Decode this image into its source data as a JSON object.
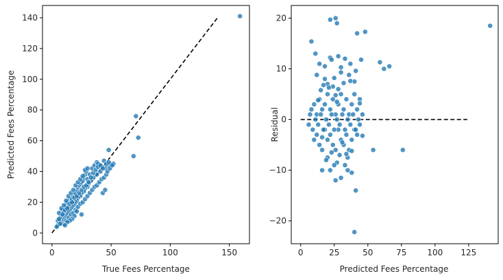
{
  "chart_data": [
    {
      "type": "scatter",
      "xlabel": "True Fees Percentage",
      "ylabel": "Predicted Fees Percentage",
      "xlim": [
        -8,
        167
      ],
      "ylim": [
        -7,
        148
      ],
      "xticks": [
        0,
        50,
        100,
        150
      ],
      "yticks": [
        0,
        20,
        40,
        60,
        80,
        100,
        120,
        140
      ],
      "reference_line": {
        "style": "dashed",
        "color": "#000000",
        "from": [
          0,
          0
        ],
        "to": [
          140,
          140
        ]
      },
      "color": "#1f77b4",
      "points": [
        [
          159,
          141
        ],
        [
          71,
          76
        ],
        [
          73,
          62
        ],
        [
          69,
          50
        ],
        [
          48,
          54
        ],
        [
          50,
          45
        ],
        [
          52,
          45
        ],
        [
          47,
          44
        ],
        [
          45,
          42
        ],
        [
          43,
          26
        ],
        [
          45,
          28
        ],
        [
          41,
          40
        ],
        [
          38,
          38
        ],
        [
          35,
          36
        ],
        [
          33,
          34
        ],
        [
          31,
          32
        ],
        [
          30,
          30
        ],
        [
          28,
          29
        ],
        [
          27,
          27
        ],
        [
          25,
          26
        ],
        [
          24,
          24
        ],
        [
          22,
          23
        ],
        [
          21,
          21
        ],
        [
          20,
          20
        ],
        [
          19,
          19
        ],
        [
          18,
          18
        ],
        [
          17,
          17
        ],
        [
          16,
          16
        ],
        [
          15,
          15
        ],
        [
          14,
          14
        ],
        [
          13,
          13
        ],
        [
          12,
          12
        ],
        [
          11,
          11
        ],
        [
          10,
          10
        ],
        [
          9,
          9
        ],
        [
          8,
          8
        ],
        [
          7,
          7
        ],
        [
          6,
          6
        ],
        [
          5,
          5
        ],
        [
          4,
          4
        ],
        [
          8,
          12
        ],
        [
          9,
          15
        ],
        [
          10,
          14
        ],
        [
          12,
          18
        ],
        [
          13,
          20
        ],
        [
          14,
          17
        ],
        [
          15,
          22
        ],
        [
          16,
          20
        ],
        [
          17,
          22
        ],
        [
          18,
          24
        ],
        [
          19,
          25
        ],
        [
          20,
          26
        ],
        [
          21,
          28
        ],
        [
          22,
          30
        ],
        [
          23,
          31
        ],
        [
          24,
          32
        ],
        [
          25,
          33
        ],
        [
          26,
          34
        ],
        [
          27,
          36
        ],
        [
          28,
          38
        ],
        [
          29,
          40
        ],
        [
          30,
          35
        ],
        [
          32,
          38
        ],
        [
          34,
          42
        ],
        [
          36,
          44
        ],
        [
          38,
          46
        ],
        [
          40,
          44
        ],
        [
          42,
          43
        ],
        [
          44,
          47
        ],
        [
          46,
          45
        ],
        [
          48,
          46
        ],
        [
          39,
          45
        ],
        [
          10,
          6
        ],
        [
          12,
          8
        ],
        [
          14,
          10
        ],
        [
          16,
          12
        ],
        [
          18,
          13
        ],
        [
          20,
          15
        ],
        [
          22,
          17
        ],
        [
          24,
          19
        ],
        [
          26,
          20
        ],
        [
          28,
          22
        ],
        [
          30,
          24
        ],
        [
          32,
          26
        ],
        [
          34,
          28
        ],
        [
          36,
          30
        ],
        [
          38,
          31
        ],
        [
          40,
          33
        ],
        [
          42,
          35
        ],
        [
          44,
          36
        ],
        [
          46,
          38
        ],
        [
          25,
          12
        ],
        [
          21,
          14
        ],
        [
          19,
          11
        ],
        [
          17,
          9
        ],
        [
          15,
          8
        ],
        [
          13,
          7
        ],
        [
          11,
          5
        ],
        [
          7,
          10
        ],
        [
          6,
          13
        ],
        [
          8,
          16
        ],
        [
          10,
          18
        ],
        [
          12,
          21
        ],
        [
          14,
          24
        ],
        [
          16,
          26
        ],
        [
          18,
          28
        ],
        [
          20,
          31
        ],
        [
          22,
          33
        ],
        [
          24,
          35
        ],
        [
          26,
          37
        ],
        [
          28,
          41
        ],
        [
          30,
          42
        ],
        [
          5,
          8
        ],
        [
          6,
          9
        ],
        [
          7,
          6
        ],
        [
          9,
          12
        ],
        [
          11,
          15
        ],
        [
          13,
          16
        ],
        [
          15,
          19
        ],
        [
          17,
          20
        ],
        [
          19,
          23
        ],
        [
          21,
          24
        ],
        [
          23,
          26
        ],
        [
          25,
          28
        ],
        [
          27,
          30
        ],
        [
          29,
          31
        ],
        [
          31,
          33
        ],
        [
          33,
          36
        ],
        [
          35,
          39
        ],
        [
          37,
          41
        ],
        [
          39,
          43
        ],
        [
          41,
          44
        ],
        [
          43,
          42
        ],
        [
          47,
          40
        ],
        [
          49,
          42
        ],
        [
          51,
          44
        ]
      ]
    },
    {
      "type": "scatter",
      "xlabel": "Predicted Fees Percentage",
      "ylabel": "Residual",
      "xlim": [
        -7,
        147
      ],
      "ylim": [
        -24.5,
        22.5
      ],
      "xticks": [
        0,
        25,
        50,
        75,
        100,
        125
      ],
      "yticks": [
        -20,
        -10,
        0,
        10,
        20
      ],
      "reference_line": {
        "style": "dashed",
        "color": "#000000",
        "from": [
          0,
          0
        ],
        "to": [
          124,
          0
        ]
      },
      "color": "#1f77b4",
      "points": [
        [
          141,
          18.5
        ],
        [
          76,
          -6
        ],
        [
          62,
          10
        ],
        [
          66,
          10.5
        ],
        [
          59,
          11.3
        ],
        [
          54,
          -6
        ],
        [
          45,
          11.8
        ],
        [
          48,
          17.3
        ],
        [
          42,
          17
        ],
        [
          41,
          -14
        ],
        [
          40,
          -22.2
        ],
        [
          26,
          20
        ],
        [
          22,
          19.7
        ],
        [
          27,
          19
        ],
        [
          8,
          15.4
        ],
        [
          11,
          13
        ],
        [
          22,
          12.2
        ],
        [
          23,
          11.8
        ],
        [
          28,
          12.5
        ],
        [
          33,
          12
        ],
        [
          18,
          10.5
        ],
        [
          14,
          11
        ],
        [
          30,
          10.3
        ],
        [
          37,
          11
        ],
        [
          30,
          9.3
        ],
        [
          36,
          8.8
        ],
        [
          12,
          8.8
        ],
        [
          18,
          8
        ],
        [
          25,
          8.2
        ],
        [
          40,
          7.5
        ],
        [
          41,
          9.6
        ],
        [
          22,
          -10
        ],
        [
          16,
          -10
        ],
        [
          26,
          -12
        ],
        [
          30,
          -11.5
        ],
        [
          35,
          -10
        ],
        [
          38,
          -10.5
        ],
        [
          33,
          -9
        ],
        [
          27,
          -8.5
        ],
        [
          20,
          -7.5
        ],
        [
          10,
          -4
        ],
        [
          12,
          -3
        ],
        [
          14,
          -5
        ],
        [
          16,
          -6
        ],
        [
          18,
          -2
        ],
        [
          20,
          -4
        ],
        [
          22,
          -3
        ],
        [
          24,
          -5
        ],
        [
          26,
          -6
        ],
        [
          28,
          -2
        ],
        [
          30,
          -4
        ],
        [
          32,
          -5
        ],
        [
          34,
          -3
        ],
        [
          36,
          -6
        ],
        [
          38,
          -4
        ],
        [
          40,
          -2
        ],
        [
          42,
          -3
        ],
        [
          44,
          -1
        ],
        [
          8,
          2
        ],
        [
          10,
          3
        ],
        [
          12,
          1
        ],
        [
          14,
          4
        ],
        [
          16,
          2
        ],
        [
          18,
          3
        ],
        [
          20,
          5
        ],
        [
          22,
          2
        ],
        [
          24,
          4
        ],
        [
          26,
          1
        ],
        [
          28,
          3
        ],
        [
          30,
          5
        ],
        [
          32,
          2
        ],
        [
          34,
          4
        ],
        [
          36,
          1
        ],
        [
          38,
          3
        ],
        [
          40,
          5
        ],
        [
          42,
          2
        ],
        [
          44,
          4
        ],
        [
          46,
          1
        ],
        [
          6,
          -1
        ],
        [
          7,
          1
        ],
        [
          9,
          -2
        ],
        [
          11,
          0
        ],
        [
          13,
          -1
        ],
        [
          15,
          1
        ],
        [
          17,
          -2
        ],
        [
          19,
          0
        ],
        [
          21,
          -1
        ],
        [
          23,
          1
        ],
        [
          25,
          -2
        ],
        [
          27,
          0
        ],
        [
          29,
          -1
        ],
        [
          31,
          1
        ],
        [
          33,
          -2
        ],
        [
          35,
          0
        ],
        [
          37,
          -1
        ],
        [
          39,
          1
        ],
        [
          41,
          -2
        ],
        [
          43,
          0
        ],
        [
          20,
          7
        ],
        [
          24,
          6.5
        ],
        [
          28,
          6
        ],
        [
          32,
          7.2
        ],
        [
          15,
          5.8
        ],
        [
          19,
          -8
        ],
        [
          25,
          -9
        ],
        [
          29,
          -7
        ],
        [
          35,
          -7.5
        ],
        [
          21,
          6.3
        ],
        [
          16,
          -3.5
        ],
        [
          23,
          -6.5
        ],
        [
          27,
          3.5
        ],
        [
          31,
          -4.5
        ],
        [
          13,
          3.8
        ],
        [
          17,
          6.8
        ],
        [
          26,
          4.8
        ],
        [
          34,
          -6.8
        ],
        [
          38,
          -6.2
        ],
        [
          44,
          3.2
        ],
        [
          46,
          -3.2
        ],
        [
          37,
          7.6
        ]
      ]
    }
  ]
}
